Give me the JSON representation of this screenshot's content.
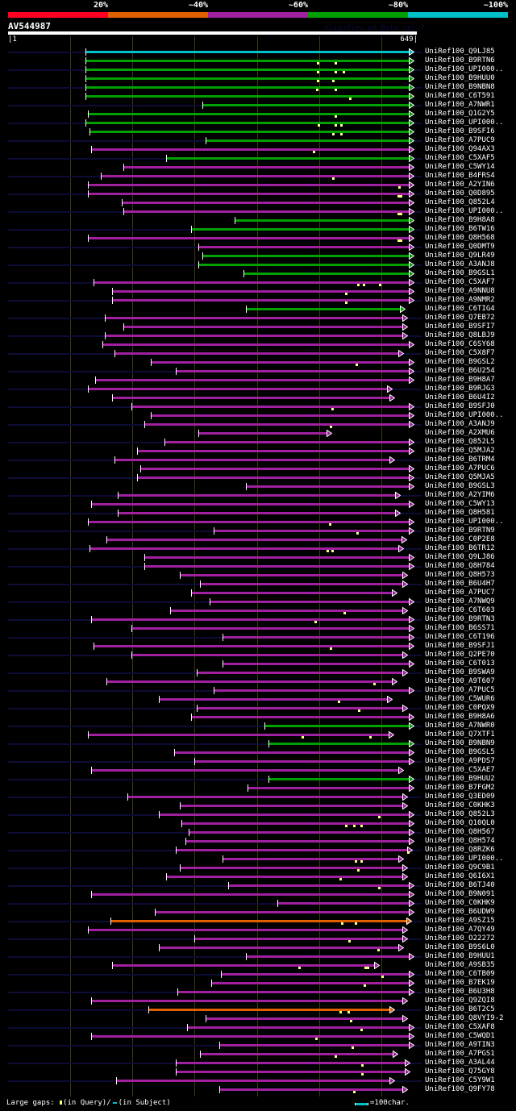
{
  "legend_bar": {
    "labels": [
      "20%",
      "~40%",
      "~60%",
      "~80%",
      "~100%"
    ],
    "colors": [
      "#ff0022",
      "#e06000",
      "#a020a0",
      "#00a000",
      "#00c0c8"
    ]
  },
  "header": {
    "query_id": "AV544987",
    "version": "AlignView.pm Beta rel.7",
    "ruler_start": "|1",
    "ruler_end": "649|"
  },
  "query_length": 649,
  "grid_every": 100,
  "colors": {
    "c": "#00c0c8",
    "g": "#00a000",
    "m": "#a020a0",
    "o": "#e06000",
    "navy": "#0c0c36",
    "gap": "#ffff80"
  },
  "rows": [
    {
      "label": "UniRef100_Q9LJ85",
      "start": 125,
      "end": 649,
      "type": "c",
      "gaps": []
    },
    {
      "label": "UniRef100_B9RTN6",
      "start": 125,
      "end": 649,
      "type": "g",
      "gaps": [
        499,
        527
      ]
    },
    {
      "label": "UniRef100_UPI000..",
      "start": 125,
      "end": 649,
      "type": "g",
      "gaps": [
        499,
        527,
        540
      ]
    },
    {
      "label": "UniRef100_B9HUU0",
      "start": 125,
      "end": 649,
      "type": "g",
      "gaps": [
        499,
        523
      ]
    },
    {
      "label": "UniRef100_B9NBN8",
      "start": 125,
      "end": 649,
      "type": "g",
      "gaps": [
        497,
        527
      ]
    },
    {
      "label": "UniRef100_C6T591",
      "start": 125,
      "end": 649,
      "type": "g",
      "gaps": [
        550
      ]
    },
    {
      "label": "UniRef100_A7NWR1",
      "start": 313,
      "end": 649,
      "type": "g",
      "gaps": []
    },
    {
      "label": "UniRef100_Q1G2Y5",
      "start": 129,
      "end": 649,
      "type": "g",
      "gaps": [
        527
      ]
    },
    {
      "label": "UniRef100_UPI000..",
      "start": 125,
      "end": 649,
      "type": "g",
      "gaps": [
        500,
        527,
        536
      ]
    },
    {
      "label": "UniRef100_B9SFI6",
      "start": 132,
      "end": 649,
      "type": "g",
      "gaps": [
        523,
        536
      ]
    },
    {
      "label": "UniRef100_A7PUC9",
      "start": 319,
      "end": 649,
      "type": "g",
      "gaps": []
    },
    {
      "label": "UniRef100_Q94AX3",
      "start": 134,
      "end": 649,
      "type": "m",
      "gaps": [
        492
      ]
    },
    {
      "label": "UniRef100_C5XAF5",
      "start": 255,
      "end": 649,
      "type": "g",
      "gaps": []
    },
    {
      "label": "UniRef100_C5WY14",
      "start": 186,
      "end": 649,
      "type": "m",
      "gaps": []
    },
    {
      "label": "UniRef100_B4FRS4",
      "start": 150,
      "end": 649,
      "type": "m",
      "gaps": [
        523
      ]
    },
    {
      "label": "UniRef100_A2YIN6",
      "start": 129,
      "end": 649,
      "type": "m",
      "gaps": [
        630
      ]
    },
    {
      "label": "UniRef100_Q0D895",
      "start": 129,
      "end": 649,
      "type": "m",
      "gaps": [
        628,
        632
      ]
    },
    {
      "label": "UniRef100_Q852L4",
      "start": 184,
      "end": 649,
      "type": "m",
      "gaps": []
    },
    {
      "label": "UniRef100_UPI000..",
      "start": 186,
      "end": 649,
      "type": "m",
      "gaps": [
        628,
        632
      ]
    },
    {
      "label": "UniRef100_B9H8A8",
      "start": 365,
      "end": 649,
      "type": "g",
      "gaps": []
    },
    {
      "label": "UniRef100_B6TW16",
      "start": 295,
      "end": 649,
      "type": "g",
      "gaps": []
    },
    {
      "label": "UniRef100_Q8H568",
      "start": 129,
      "end": 649,
      "type": "m",
      "gaps": [
        628,
        632
      ]
    },
    {
      "label": "UniRef100_Q0DMT9",
      "start": 307,
      "end": 649,
      "type": "m",
      "gaps": []
    },
    {
      "label": "UniRef100_Q9LR49",
      "start": 313,
      "end": 649,
      "type": "g",
      "gaps": []
    },
    {
      "label": "UniRef100_A3ANJ8",
      "start": 307,
      "end": 649,
      "type": "g",
      "gaps": []
    },
    {
      "label": "UniRef100_B9GSL1",
      "start": 379,
      "end": 649,
      "type": "g",
      "gaps": []
    },
    {
      "label": "UniRef100_C5XAF7",
      "start": 138,
      "end": 649,
      "type": "m",
      "gaps": [
        563,
        572,
        598
      ]
    },
    {
      "label": "UniRef100_A9NNU8",
      "start": 168,
      "end": 649,
      "type": "m",
      "gaps": [
        544
      ]
    },
    {
      "label": "UniRef100_A9NMR2",
      "start": 168,
      "end": 649,
      "type": "m",
      "gaps": [
        544
      ]
    },
    {
      "label": "UniRef100_C6TIG4",
      "start": 383,
      "end": 635,
      "type": "g",
      "gaps": []
    },
    {
      "label": "UniRef100_Q7EB72",
      "start": 157,
      "end": 639,
      "type": "m",
      "gaps": []
    },
    {
      "label": "UniRef100_B9SFI7",
      "start": 186,
      "end": 639,
      "type": "m",
      "gaps": []
    },
    {
      "label": "UniRef100_Q8LBJ9",
      "start": 157,
      "end": 639,
      "type": "m",
      "gaps": []
    },
    {
      "label": "UniRef100_C6SY68",
      "start": 153,
      "end": 649,
      "type": "m",
      "gaps": []
    },
    {
      "label": "UniRef100_C5X8F7",
      "start": 172,
      "end": 632,
      "type": "m",
      "gaps": []
    },
    {
      "label": "UniRef100_B9GSL2",
      "start": 230,
      "end": 649,
      "type": "m",
      "gaps": [
        561
      ]
    },
    {
      "label": "UniRef100_B6U254",
      "start": 271,
      "end": 649,
      "type": "m",
      "gaps": []
    },
    {
      "label": "UniRef100_B9H8A7",
      "start": 141,
      "end": 649,
      "type": "m",
      "gaps": []
    },
    {
      "label": "UniRef100_B9RJG3",
      "start": 129,
      "end": 614,
      "type": "m",
      "gaps": []
    },
    {
      "label": "UniRef100_B6U4I2",
      "start": 168,
      "end": 618,
      "type": "m",
      "gaps": []
    },
    {
      "label": "UniRef100_B9SFJ0",
      "start": 199,
      "end": 649,
      "type": "m",
      "gaps": [
        522
      ]
    },
    {
      "label": "UniRef100_UPI000..",
      "start": 230,
      "end": 649,
      "type": "m",
      "gaps": []
    },
    {
      "label": "UniRef100_A3ANJ9",
      "start": 220,
      "end": 649,
      "type": "m",
      "gaps": [
        519
      ]
    },
    {
      "label": "UniRef100_A2XMU6",
      "start": 307,
      "end": 517,
      "type": "m",
      "gaps": []
    },
    {
      "label": "UniRef100_Q852L5",
      "start": 252,
      "end": 649,
      "type": "m",
      "gaps": []
    },
    {
      "label": "UniRef100_Q5MJA2",
      "start": 208,
      "end": 649,
      "type": "m",
      "gaps": []
    },
    {
      "label": "UniRef100_B6TRM4",
      "start": 172,
      "end": 618,
      "type": "m",
      "gaps": []
    },
    {
      "label": "UniRef100_A7PUC6",
      "start": 214,
      "end": 649,
      "type": "m",
      "gaps": []
    },
    {
      "label": "UniRef100_Q5MJA5",
      "start": 208,
      "end": 649,
      "type": "m",
      "gaps": []
    },
    {
      "label": "UniRef100_B9GSL3",
      "start": 383,
      "end": 649,
      "type": "m",
      "gaps": []
    },
    {
      "label": "UniRef100_A2YIM6",
      "start": 177,
      "end": 627,
      "type": "m",
      "gaps": []
    },
    {
      "label": "UniRef100_C5WY13",
      "start": 134,
      "end": 649,
      "type": "m",
      "gaps": []
    },
    {
      "label": "UniRef100_Q8H581",
      "start": 177,
      "end": 627,
      "type": "m",
      "gaps": []
    },
    {
      "label": "UniRef100_UPI000..",
      "start": 129,
      "end": 649,
      "type": "m",
      "gaps": [
        518
      ]
    },
    {
      "label": "UniRef100_B9RTN9",
      "start": 331,
      "end": 649,
      "type": "m",
      "gaps": [
        562
      ]
    },
    {
      "label": "UniRef100_C0P2E8",
      "start": 159,
      "end": 637,
      "type": "m",
      "gaps": []
    },
    {
      "label": "UniRef100_B6TR12",
      "start": 132,
      "end": 632,
      "type": "m",
      "gaps": [
        514,
        522
      ]
    },
    {
      "label": "UniRef100_Q9LJ86",
      "start": 220,
      "end": 649,
      "type": "m",
      "gaps": []
    },
    {
      "label": "UniRef100_Q8H784",
      "start": 220,
      "end": 649,
      "type": "m",
      "gaps": []
    },
    {
      "label": "UniRef100_Q8H573",
      "start": 277,
      "end": 639,
      "type": "m",
      "gaps": []
    },
    {
      "label": "UniRef100_B6U4H7",
      "start": 309,
      "end": 639,
      "type": "m",
      "gaps": []
    },
    {
      "label": "UniRef100_A7PUC7",
      "start": 295,
      "end": 622,
      "type": "m",
      "gaps": []
    },
    {
      "label": "UniRef100_A7NWQ9",
      "start": 325,
      "end": 649,
      "type": "m",
      "gaps": []
    },
    {
      "label": "UniRef100_C6T603",
      "start": 262,
      "end": 639,
      "type": "m",
      "gaps": [
        541
      ]
    },
    {
      "label": "UniRef100_B9RTN3",
      "start": 134,
      "end": 649,
      "type": "m",
      "gaps": [
        495
      ]
    },
    {
      "label": "UniRef100_B6SS71",
      "start": 199,
      "end": 649,
      "type": "m",
      "gaps": []
    },
    {
      "label": "UniRef100_C6T196",
      "start": 346,
      "end": 649,
      "type": "m",
      "gaps": []
    },
    {
      "label": "UniRef100_B9SFJ1",
      "start": 138,
      "end": 649,
      "type": "m",
      "gaps": [
        519
      ]
    },
    {
      "label": "UniRef100_Q2PE70",
      "start": 199,
      "end": 639,
      "type": "m",
      "gaps": []
    },
    {
      "label": "UniRef100_C6T013",
      "start": 346,
      "end": 649,
      "type": "m",
      "gaps": []
    },
    {
      "label": "UniRef100_B9SWA9",
      "start": 304,
      "end": 639,
      "type": "m",
      "gaps": []
    },
    {
      "label": "UniRef100_A9T607",
      "start": 159,
      "end": 622,
      "type": "m",
      "gaps": [
        589
      ]
    },
    {
      "label": "UniRef100_A7PUC5",
      "start": 331,
      "end": 649,
      "type": "m",
      "gaps": []
    },
    {
      "label": "UniRef100_C5WUR6",
      "start": 243,
      "end": 614,
      "type": "m",
      "gaps": [
        532
      ]
    },
    {
      "label": "UniRef100_C0PQX9",
      "start": 304,
      "end": 639,
      "type": "m",
      "gaps": [
        565
      ]
    },
    {
      "label": "UniRef100_B9H8A6",
      "start": 295,
      "end": 649,
      "type": "m",
      "gaps": []
    },
    {
      "label": "UniRef100_A7NWR0",
      "start": 413,
      "end": 649,
      "type": "g",
      "gaps": []
    },
    {
      "label": "UniRef100_Q7XTF1",
      "start": 129,
      "end": 617,
      "type": "m",
      "gaps": [
        474,
        583
      ]
    },
    {
      "label": "UniRef100_B9NBN9",
      "start": 420,
      "end": 649,
      "type": "g",
      "gaps": []
    },
    {
      "label": "UniRef100_B9GSL5",
      "start": 268,
      "end": 649,
      "type": "m",
      "gaps": []
    },
    {
      "label": "UniRef100_A9PDS7",
      "start": 300,
      "end": 649,
      "type": "m",
      "gaps": []
    },
    {
      "label": "UniRef100_C5XAE7",
      "start": 134,
      "end": 632,
      "type": "m",
      "gaps": []
    },
    {
      "label": "UniRef100_B9HUU2",
      "start": 420,
      "end": 649,
      "type": "g",
      "gaps": []
    },
    {
      "label": "UniRef100_B7FGM2",
      "start": 386,
      "end": 649,
      "type": "m",
      "gaps": []
    },
    {
      "label": "UniRef100_Q3ED09",
      "start": 193,
      "end": 639,
      "type": "m",
      "gaps": []
    },
    {
      "label": "UniRef100_C0KHK3",
      "start": 277,
      "end": 639,
      "type": "m",
      "gaps": []
    },
    {
      "label": "UniRef100_Q852L3",
      "start": 243,
      "end": 649,
      "type": "m",
      "gaps": [
        597
      ]
    },
    {
      "label": "UniRef100_Q10QL0",
      "start": 280,
      "end": 649,
      "type": "m",
      "gaps": [
        544,
        557,
        569
      ]
    },
    {
      "label": "UniRef100_Q8H567",
      "start": 291,
      "end": 649,
      "type": "m",
      "gaps": []
    },
    {
      "label": "UniRef100_Q8H574",
      "start": 286,
      "end": 649,
      "type": "m",
      "gaps": []
    },
    {
      "label": "UniRef100_Q8RZK6",
      "start": 271,
      "end": 646,
      "type": "m",
      "gaps": [
        644
      ]
    },
    {
      "label": "UniRef100_UPI000..",
      "start": 346,
      "end": 632,
      "type": "m",
      "gaps": [
        560,
        569
      ]
    },
    {
      "label": "UniRef100_Q9C9B1",
      "start": 277,
      "end": 639,
      "type": "m",
      "gaps": [
        563
      ]
    },
    {
      "label": "UniRef100_Q6I6X1",
      "start": 255,
      "end": 639,
      "type": "m",
      "gaps": [
        535
      ]
    },
    {
      "label": "UniRef100_B6TJ40",
      "start": 355,
      "end": 649,
      "type": "m",
      "gaps": [
        597
      ]
    },
    {
      "label": "UniRef100_B9N091",
      "start": 134,
      "end": 649,
      "type": "m",
      "gaps": []
    },
    {
      "label": "UniRef100_C0KHK9",
      "start": 434,
      "end": 649,
      "type": "m",
      "gaps": []
    },
    {
      "label": "UniRef100_B6UDW9",
      "start": 237,
      "end": 649,
      "type": "m",
      "gaps": []
    },
    {
      "label": "UniRef100_A9SZ15",
      "start": 166,
      "end": 645,
      "type": "o",
      "gaps": [
        538,
        560
      ]
    },
    {
      "label": "UniRef100_A7QY49",
      "start": 129,
      "end": 639,
      "type": "m",
      "gaps": []
    },
    {
      "label": "UniRef100_O22272",
      "start": 300,
      "end": 639,
      "type": "m",
      "gaps": [
        549
      ]
    },
    {
      "label": "UniRef100_B9S6L0",
      "start": 243,
      "end": 632,
      "type": "m",
      "gaps": [
        596
      ]
    },
    {
      "label": "UniRef100_B9HUU1",
      "start": 383,
      "end": 649,
      "type": "m",
      "gaps": []
    },
    {
      "label": "UniRef100_A9SB35",
      "start": 168,
      "end": 593,
      "type": "m",
      "gaps": [
        469,
        575,
        579
      ]
    },
    {
      "label": "UniRef100_C6TB09",
      "start": 343,
      "end": 649,
      "type": "m",
      "gaps": [
        602
      ]
    },
    {
      "label": "UniRef100_B7EK19",
      "start": 328,
      "end": 649,
      "type": "m",
      "gaps": [
        574
      ]
    },
    {
      "label": "UniRef100_B6U3H8",
      "start": 273,
      "end": 649,
      "type": "m",
      "gaps": []
    },
    {
      "label": "UniRef100_Q9ZQI8",
      "start": 134,
      "end": 639,
      "type": "m",
      "gaps": []
    },
    {
      "label": "UniRef100_B6T2C5",
      "start": 227,
      "end": 618,
      "type": "o",
      "gaps": [
        535,
        548
      ]
    },
    {
      "label": "UniRef100_Q8VYI9-2",
      "start": 319,
      "end": 639,
      "type": "m",
      "gaps": [
        552
      ]
    },
    {
      "label": "UniRef100_C5XAF8",
      "start": 289,
      "end": 649,
      "type": "m",
      "gaps": [
        569
      ]
    },
    {
      "label": "UniRef100_C5WQD1",
      "start": 134,
      "end": 649,
      "type": "m",
      "gaps": [
        496
      ]
    },
    {
      "label": "UniRef100_A9TIN3",
      "start": 341,
      "end": 649,
      "type": "m",
      "gaps": [
        554
      ]
    },
    {
      "label": "UniRef100_A7PGS1",
      "start": 309,
      "end": 623,
      "type": "m",
      "gaps": [
        527
      ]
    },
    {
      "label": "UniRef100_A3AL44",
      "start": 271,
      "end": 643,
      "type": "m",
      "gaps": [
        570
      ]
    },
    {
      "label": "UniRef100_Q75GY8",
      "start": 271,
      "end": 643,
      "type": "m",
      "gaps": [
        570
      ]
    },
    {
      "label": "UniRef100_C5Y9W1",
      "start": 175,
      "end": 618,
      "type": "m",
      "gaps": []
    },
    {
      "label": "UniRef100_Q9FY78",
      "start": 341,
      "end": 639,
      "type": "m",
      "gaps": [
        557
      ]
    }
  ],
  "footer": {
    "gaps_label": "Large gaps:",
    "in_query": "(in Query)/",
    "in_subject": "(in Subject)",
    "scale_label": "=100char."
  }
}
